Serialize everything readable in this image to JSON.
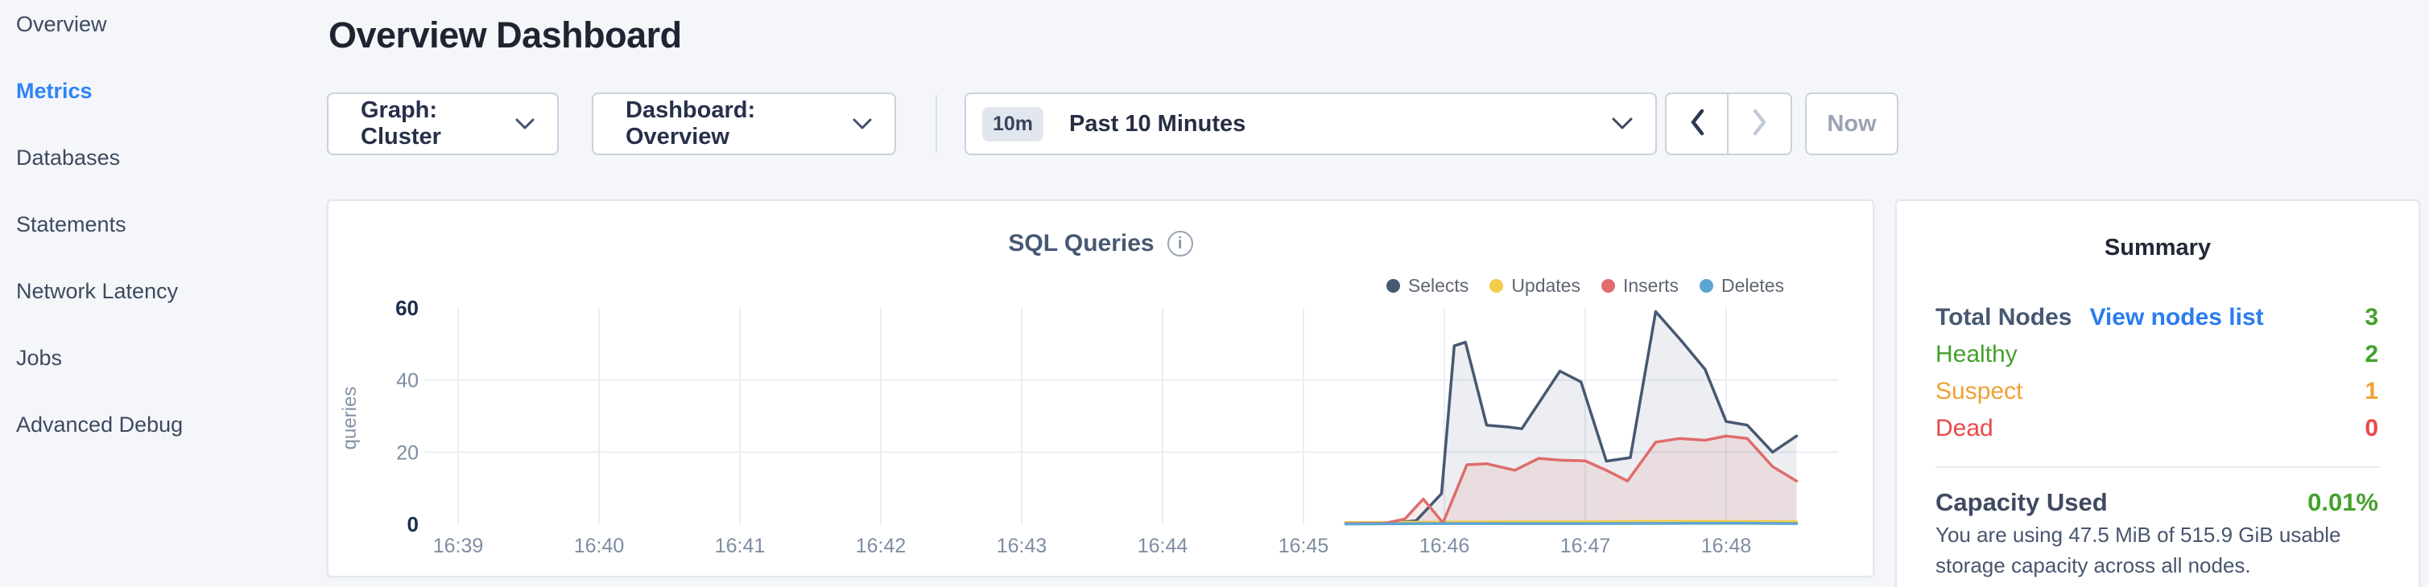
{
  "sidebar": {
    "items": [
      {
        "label": "Overview",
        "active": false
      },
      {
        "label": "Metrics",
        "active": true
      },
      {
        "label": "Databases",
        "active": false
      },
      {
        "label": "Statements",
        "active": false
      },
      {
        "label": "Network Latency",
        "active": false
      },
      {
        "label": "Jobs",
        "active": false
      },
      {
        "label": "Advanced Debug",
        "active": false
      }
    ]
  },
  "header": {
    "title": "Overview Dashboard"
  },
  "controls": {
    "graph_dropdown": {
      "label": "Graph: Cluster"
    },
    "dashboard_dropdown": {
      "label": "Dashboard: Overview"
    },
    "time_window": {
      "badge": "10m",
      "label": "Past 10 Minutes"
    },
    "prev_enabled": true,
    "next_enabled": false,
    "now_button": {
      "label": "Now",
      "enabled": false
    }
  },
  "chart": {
    "title": "SQL Queries"
  },
  "chart_data": {
    "type": "area",
    "title": "SQL Queries",
    "ylabel": "queries",
    "x_unit": "clock time (HH:MM)",
    "x_domain": [
      38.75,
      48.6
    ],
    "y_domain": [
      0,
      60
    ],
    "grid": "horizontal at 20/40, vertical per minute",
    "legend_position": "top-right",
    "x_ticks": [
      {
        "v": 39,
        "label": "16:39"
      },
      {
        "v": 40,
        "label": "16:40"
      },
      {
        "v": 41,
        "label": "16:41"
      },
      {
        "v": 42,
        "label": "16:42"
      },
      {
        "v": 43,
        "label": "16:43"
      },
      {
        "v": 44,
        "label": "16:44"
      },
      {
        "v": 45,
        "label": "16:45"
      },
      {
        "v": 46,
        "label": "16:46"
      },
      {
        "v": 47,
        "label": "16:47"
      },
      {
        "v": 48,
        "label": "16:48"
      }
    ],
    "y_ticks": [
      {
        "v": 0,
        "label": "0",
        "strong": true
      },
      {
        "v": 20,
        "label": "20",
        "grid": true
      },
      {
        "v": 40,
        "label": "40",
        "grid": true
      },
      {
        "v": 60,
        "label": "60",
        "strong": true
      }
    ],
    "series": [
      {
        "name": "Selects",
        "color": "#475872",
        "fill": "rgba(71,88,114,0.10)",
        "points": [
          [
            45.3,
            0.3
          ],
          [
            45.62,
            0.3
          ],
          [
            45.8,
            1.0
          ],
          [
            45.98,
            8.5
          ],
          [
            46.07,
            49.5
          ],
          [
            46.15,
            50.5
          ],
          [
            46.3,
            27.5
          ],
          [
            46.45,
            27.0
          ],
          [
            46.55,
            26.5
          ],
          [
            46.82,
            42.5
          ],
          [
            46.97,
            39.5
          ],
          [
            47.15,
            17.5
          ],
          [
            47.32,
            18.5
          ],
          [
            47.5,
            59.0
          ],
          [
            47.68,
            51.0
          ],
          [
            47.85,
            43.0
          ],
          [
            48.0,
            28.5
          ],
          [
            48.15,
            27.5
          ],
          [
            48.33,
            20.0
          ],
          [
            48.5,
            24.5
          ]
        ]
      },
      {
        "name": "Updates",
        "color": "#f2cb49",
        "fill": "none",
        "points": [
          [
            45.3,
            0.5
          ],
          [
            46.0,
            0.6
          ],
          [
            46.5,
            0.7
          ],
          [
            47.0,
            0.7
          ],
          [
            47.5,
            0.8
          ],
          [
            48.0,
            0.8
          ],
          [
            48.5,
            0.7
          ]
        ]
      },
      {
        "name": "Inserts",
        "color": "#e06c6c",
        "fill": "rgba(224,108,108,0.13)",
        "points": [
          [
            45.3,
            0.2
          ],
          [
            45.58,
            0.3
          ],
          [
            45.72,
            1.5
          ],
          [
            45.85,
            7.0
          ],
          [
            45.99,
            0.4
          ],
          [
            46.16,
            16.5
          ],
          [
            46.3,
            16.8
          ],
          [
            46.5,
            15.0
          ],
          [
            46.67,
            18.3
          ],
          [
            46.82,
            17.8
          ],
          [
            47.0,
            17.6
          ],
          [
            47.15,
            15.0
          ],
          [
            47.3,
            12.0
          ],
          [
            47.5,
            22.8
          ],
          [
            47.67,
            23.8
          ],
          [
            47.85,
            23.3
          ],
          [
            48.0,
            24.5
          ],
          [
            48.15,
            23.8
          ],
          [
            48.33,
            16.0
          ],
          [
            48.5,
            12.0
          ]
        ]
      },
      {
        "name": "Deletes",
        "color": "#5ea4d2",
        "fill": "none",
        "points": [
          [
            45.3,
            0.1
          ],
          [
            46.0,
            0.2
          ],
          [
            47.0,
            0.2
          ],
          [
            48.0,
            0.3
          ],
          [
            48.5,
            0.2
          ]
        ]
      }
    ]
  },
  "summary": {
    "title": "Summary",
    "rows": [
      {
        "label": "Total Nodes",
        "link": "View nodes list",
        "value": "3",
        "color": "green"
      },
      {
        "label": "Healthy",
        "value": "2",
        "color": "green"
      },
      {
        "label": "Suspect",
        "value": "1",
        "color": "orange"
      },
      {
        "label": "Dead",
        "value": "0",
        "color": "red"
      }
    ],
    "capacity": {
      "label": "Capacity Used",
      "value": "0.01%"
    },
    "caption": "You are using 47.5 MiB of 515.9 GiB usable storage capacity across all nodes."
  },
  "theme": {
    "accent_blue": "#2e85f4",
    "link_blue": "#2a7cf0",
    "healthy_green": "#44a12c",
    "suspect_orange": "#f0a136",
    "dead_red": "#e94848",
    "selects_navy": "#475872",
    "updates_yellow": "#f2cb49",
    "inserts_red": "#e06c6c",
    "deletes_blue": "#5ea4d2",
    "page_bg": "#f4f6fa",
    "card_border": "#e2e7ef"
  }
}
